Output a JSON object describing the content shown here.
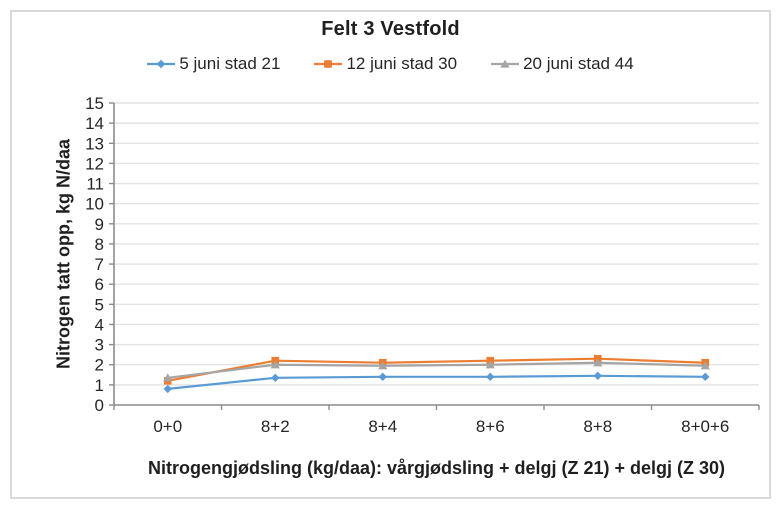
{
  "chart_data": {
    "type": "line",
    "title": "Felt 3 Vestfold",
    "categories": [
      "0+0",
      "8+2",
      "8+4",
      "8+6",
      "8+8",
      "8+0+6"
    ],
    "series": [
      {
        "name": "5 juni stad 21",
        "color": "#5B9BD5",
        "marker": "diamond",
        "values": [
          0.8,
          1.35,
          1.4,
          1.4,
          1.45,
          1.4
        ]
      },
      {
        "name": "12 juni stad 30",
        "color": "#ED7D31",
        "marker": "square",
        "values": [
          1.2,
          2.2,
          2.1,
          2.2,
          2.3,
          2.1
        ]
      },
      {
        "name": "20 juni stad 44",
        "color": "#A5A5A5",
        "marker": "triangle",
        "values": [
          1.35,
          2.0,
          1.95,
          2.0,
          2.1,
          1.95
        ]
      }
    ],
    "xlabel": "Nitrogengjødsling (kg/daa): vårgjødsling + delgj (Z 21) + delgj (Z 30)",
    "ylabel": "Nitrogen tatt opp, kg N/daa",
    "ylim": [
      0,
      15
    ],
    "yticks": [
      "0",
      "1",
      "2",
      "3",
      "4",
      "5",
      "6",
      "7",
      "8",
      "9",
      "10",
      "11",
      "12",
      "13",
      "14",
      "15"
    ],
    "grid": true,
    "legend_position": "top",
    "colors": {
      "grid": "#E4E4E4",
      "axis": "#8C8C8C",
      "tick_text": "#262626",
      "frame_border": "#D9D9D9"
    }
  }
}
